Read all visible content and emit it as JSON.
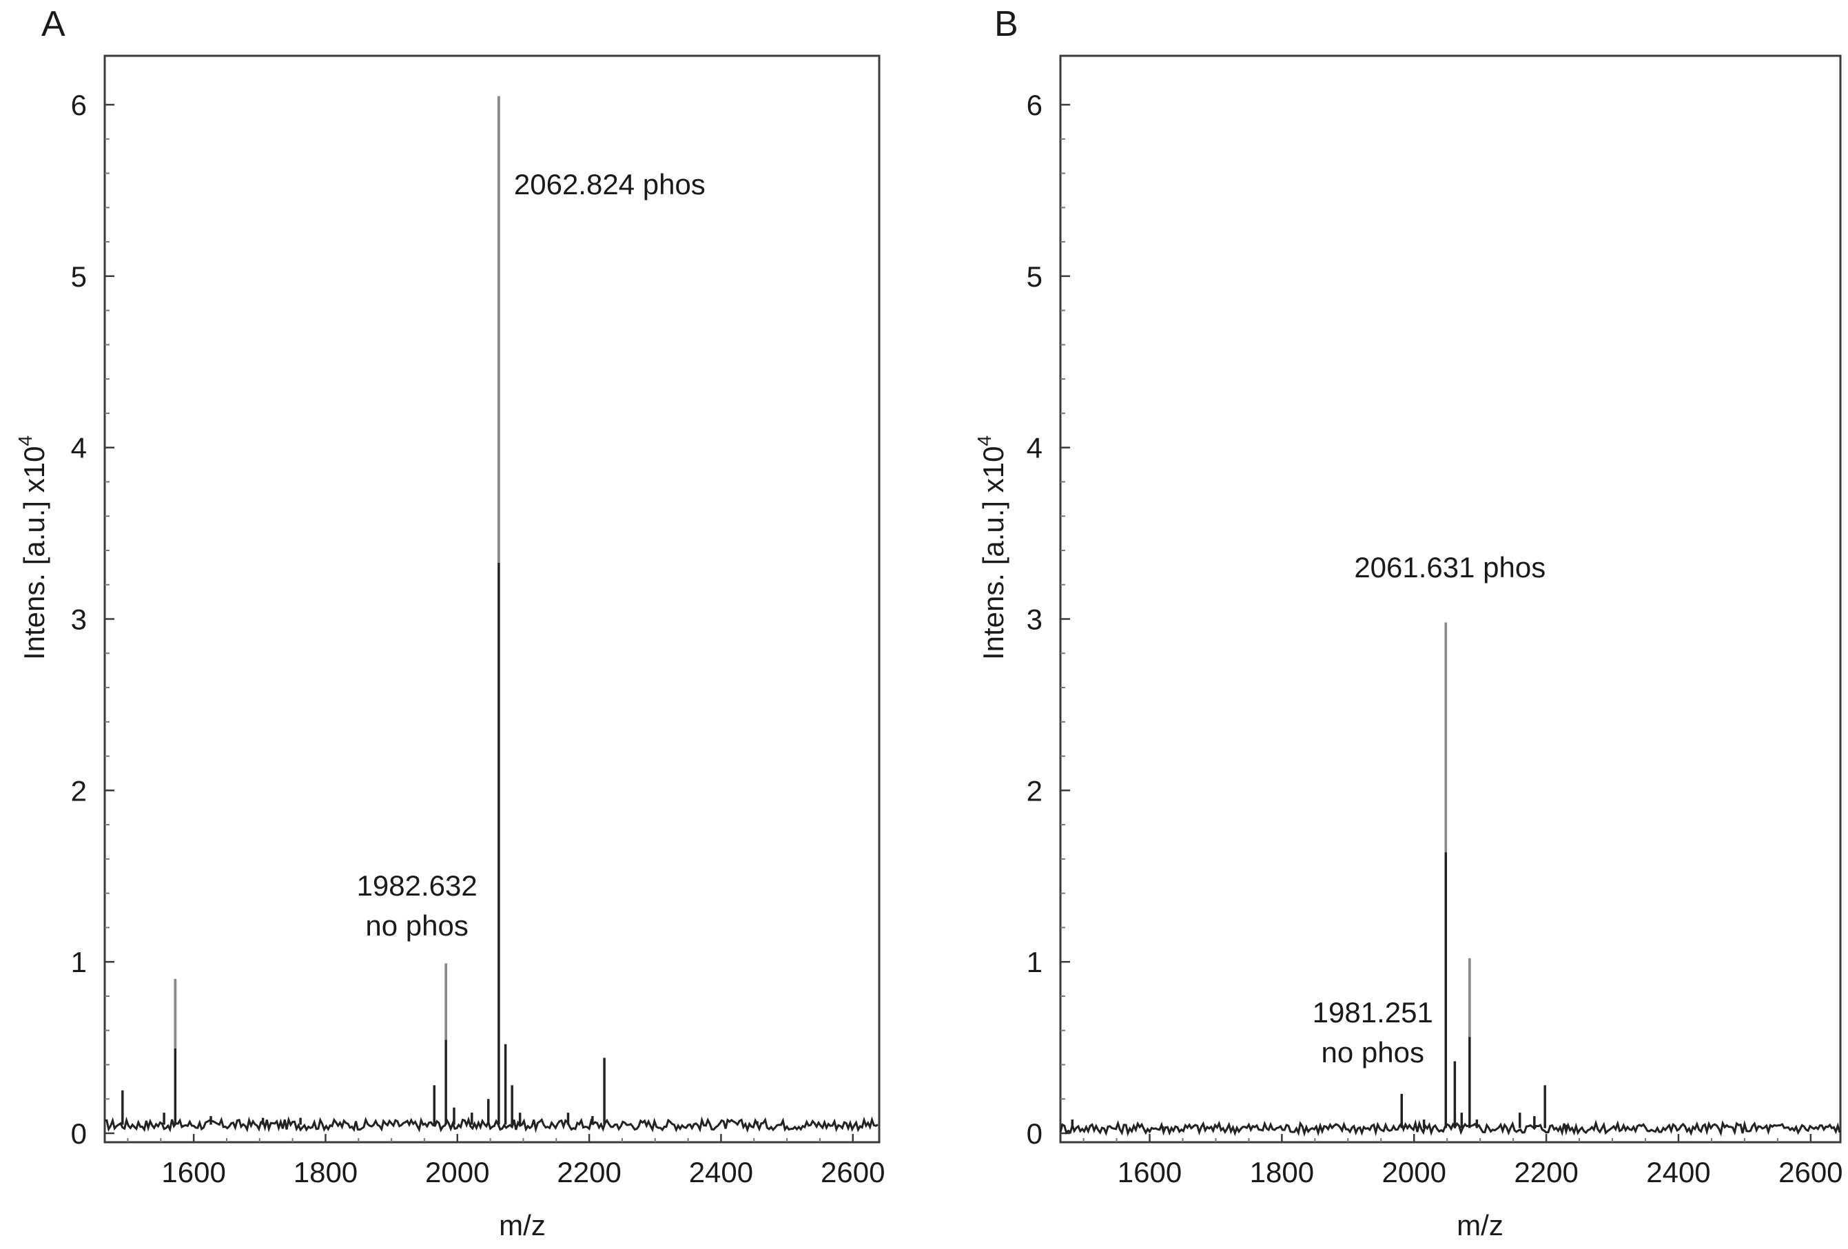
{
  "chart_data": [
    {
      "panel": "A",
      "type": "line",
      "title": "",
      "xlabel": "m/z",
      "ylabel": "Intens. [a.u.] x10",
      "ylabel_superscript": "4",
      "xlim": [
        1465,
        2640
      ],
      "ylim": [
        0,
        6.3
      ],
      "x_ticks": [
        "1600",
        "1800",
        "2000",
        "2200",
        "2400",
        "2600"
      ],
      "y_ticks": [
        "0",
        "1",
        "2",
        "3",
        "4",
        "5",
        "6"
      ],
      "grid": false,
      "baseline_level": 0.05,
      "peaks": [
        {
          "x": 1492,
          "y": 0.25
        },
        {
          "x": 1555,
          "y": 0.12
        },
        {
          "x": 1572,
          "y": 0.9
        },
        {
          "x": 1626,
          "y": 0.1
        },
        {
          "x": 1705,
          "y": 0.09
        },
        {
          "x": 1762,
          "y": 0.09
        },
        {
          "x": 1965,
          "y": 0.28
        },
        {
          "x": 1982.632,
          "y": 0.99
        },
        {
          "x": 1995,
          "y": 0.15
        },
        {
          "x": 2022,
          "y": 0.12
        },
        {
          "x": 2047,
          "y": 0.2
        },
        {
          "x": 2062.824,
          "y": 6.05
        },
        {
          "x": 2073,
          "y": 0.52
        },
        {
          "x": 2083,
          "y": 0.28
        },
        {
          "x": 2095,
          "y": 0.12
        },
        {
          "x": 2168,
          "y": 0.12
        },
        {
          "x": 2205,
          "y": 0.1
        },
        {
          "x": 2223,
          "y": 0.44
        },
        {
          "x": 2455,
          "y": 0.07
        }
      ],
      "annotations": [
        {
          "line1": "2062.824 phos",
          "line2": "",
          "x": 2062.824
        },
        {
          "line1": "1982.632",
          "line2": "no phos",
          "x": 1982.632
        }
      ]
    },
    {
      "panel": "B",
      "type": "line",
      "title": "",
      "xlabel": "m/z",
      "ylabel": "Intens. [a.u.] x10",
      "ylabel_superscript": "4",
      "xlim": [
        1465,
        2645
      ],
      "ylim": [
        0,
        6.3
      ],
      "x_ticks": [
        "1600",
        "1800",
        "2000",
        "2200",
        "2400",
        "2600"
      ],
      "y_ticks": [
        "0",
        "1",
        "2",
        "3",
        "4",
        "5",
        "6"
      ],
      "grid": false,
      "baseline_level": 0.03,
      "peaks": [
        {
          "x": 1483,
          "y": 0.08
        },
        {
          "x": 1620,
          "y": 0.04
        },
        {
          "x": 1981.251,
          "y": 0.23
        },
        {
          "x": 2015,
          "y": 0.08
        },
        {
          "x": 2048,
          "y": 2.98
        },
        {
          "x": 2061.631,
          "y": 0.42
        },
        {
          "x": 2072,
          "y": 0.12
        },
        {
          "x": 2084,
          "y": 1.02
        },
        {
          "x": 2095,
          "y": 0.08
        },
        {
          "x": 2160,
          "y": 0.12
        },
        {
          "x": 2182,
          "y": 0.1
        },
        {
          "x": 2198,
          "y": 0.28
        },
        {
          "x": 2230,
          "y": 0.05
        }
      ],
      "annotations": [
        {
          "line1": "2061.631 phos",
          "line2": "",
          "x": 2048
        },
        {
          "line1": "1981.251",
          "line2": "no phos",
          "x": 1981.251
        }
      ]
    }
  ]
}
